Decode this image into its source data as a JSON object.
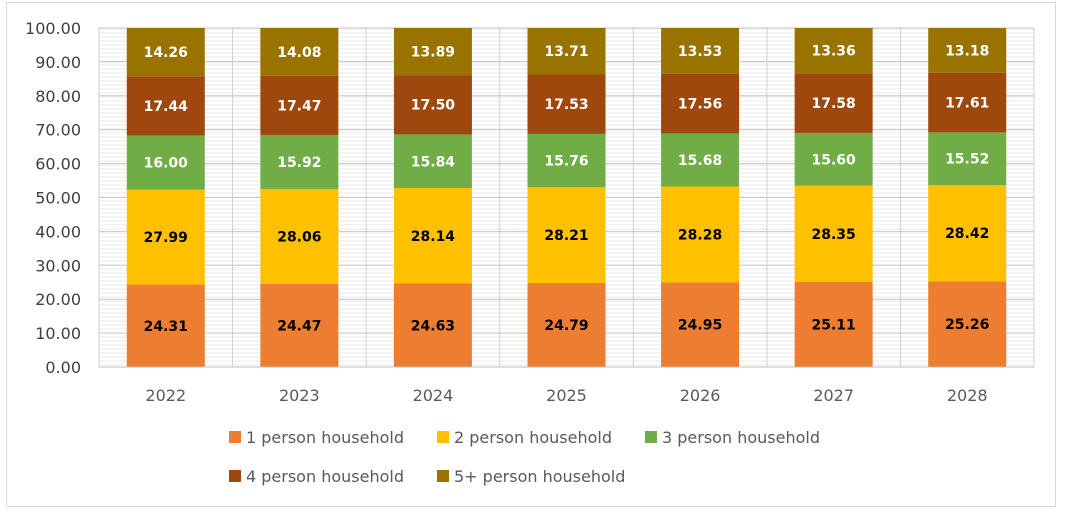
{
  "chart_data": {
    "type": "bar",
    "stacked": true,
    "title": "",
    "xlabel": "",
    "ylabel": "",
    "ylim": [
      0,
      100
    ],
    "yticks": [
      "0.00",
      "10.00",
      "20.00",
      "30.00",
      "40.00",
      "50.00",
      "60.00",
      "70.00",
      "80.00",
      "90.00",
      "100.00"
    ],
    "categories": [
      "2022",
      "2023",
      "2024",
      "2025",
      "2026",
      "2027",
      "2028"
    ],
    "series": [
      {
        "name": "1 person household",
        "color": "#ed7d31",
        "label_color": "#000000",
        "values": [
          24.31,
          24.47,
          24.63,
          24.79,
          24.95,
          25.11,
          25.26
        ],
        "labels": [
          "24.31",
          "24.47",
          "24.63",
          "24.79",
          "24.95",
          "25.11",
          "25.26"
        ]
      },
      {
        "name": "2 person household",
        "color": "#ffc000",
        "label_color": "#000000",
        "values": [
          27.99,
          28.06,
          28.14,
          28.21,
          28.28,
          28.35,
          28.42
        ],
        "labels": [
          "27.99",
          "28.06",
          "28.14",
          "28.21",
          "28.28",
          "28.35",
          "28.42"
        ]
      },
      {
        "name": "3 person household",
        "color": "#70ad47",
        "label_color": "#ffffff",
        "values": [
          16.0,
          15.92,
          15.84,
          15.76,
          15.68,
          15.6,
          15.52
        ],
        "labels": [
          "16.00",
          "15.92",
          "15.84",
          "15.76",
          "15.68",
          "15.60",
          "15.52"
        ]
      },
      {
        "name": "4 person household",
        "color": "#9e480e",
        "label_color": "#ffffff",
        "values": [
          17.44,
          17.47,
          17.5,
          17.53,
          17.56,
          17.58,
          17.61
        ],
        "labels": [
          "17.44",
          "17.47",
          "17.50",
          "17.53",
          "17.56",
          "17.58",
          "17.61"
        ]
      },
      {
        "name": "5+  person household",
        "color": "#997300",
        "label_color": "#ffffff",
        "values": [
          14.26,
          14.08,
          13.89,
          13.71,
          13.53,
          13.36,
          13.18
        ],
        "labels": [
          "14.26",
          "14.08",
          "13.89",
          "13.71",
          "13.53",
          "13.36",
          "13.18"
        ]
      }
    ],
    "legend_position": "bottom",
    "grid": true
  }
}
